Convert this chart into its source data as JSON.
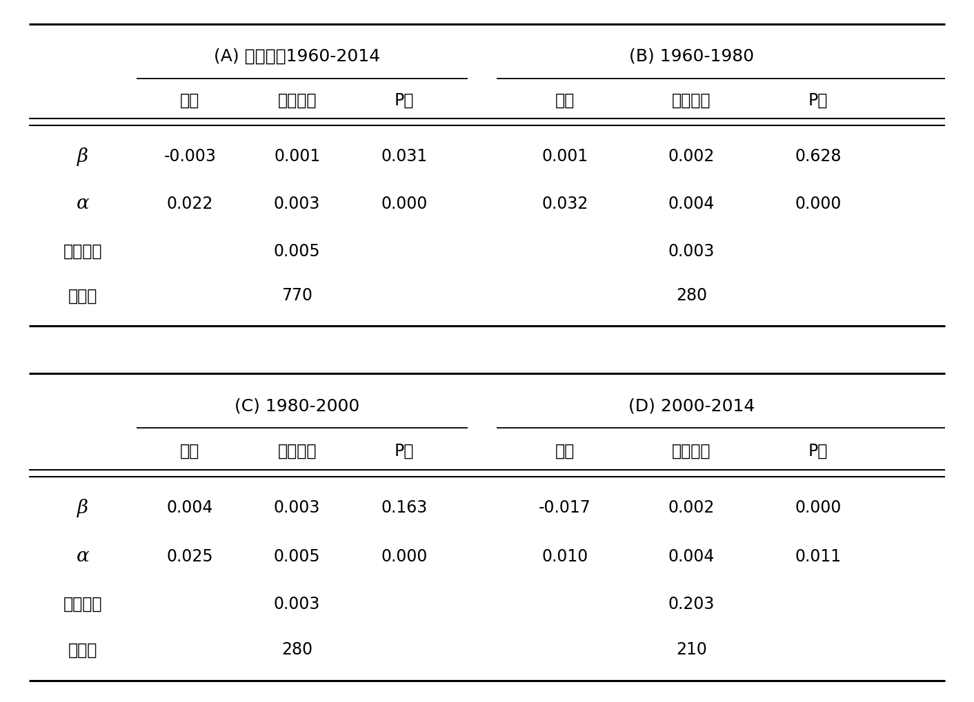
{
  "panel_A_title": "(A) 全期間：1960-2014",
  "panel_B_title": "(B) 1960-1980",
  "panel_C_title": "(C) 1980-2000",
  "panel_D_title": "(D) 2000-2014",
  "col_headers": [
    "係数",
    "標準誤差",
    "P値"
  ],
  "row_labels": [
    "β",
    "α",
    "決定係数",
    "観察数"
  ],
  "panel_A": {
    "beta": [
      "-0.003",
      "0.001",
      "0.031"
    ],
    "alpha": [
      "0.022",
      "0.003",
      "0.000"
    ],
    "r2": "0.005",
    "n": "770"
  },
  "panel_B": {
    "beta": [
      "0.001",
      "0.002",
      "0.628"
    ],
    "alpha": [
      "0.032",
      "0.004",
      "0.000"
    ],
    "r2": "0.003",
    "n": "280"
  },
  "panel_C": {
    "beta": [
      "0.004",
      "0.003",
      "0.163"
    ],
    "alpha": [
      "0.025",
      "0.005",
      "0.000"
    ],
    "r2": "0.003",
    "n": "280"
  },
  "panel_D": {
    "beta": [
      "-0.017",
      "0.002",
      "0.000"
    ],
    "alpha": [
      "0.010",
      "0.004",
      "0.011"
    ],
    "r2": "0.203",
    "n": "210"
  },
  "bg_color": "#ffffff",
  "text_color": "#000000",
  "font_size_panel": 18,
  "font_size_header": 17,
  "font_size_data": 17,
  "font_size_greek": 20
}
